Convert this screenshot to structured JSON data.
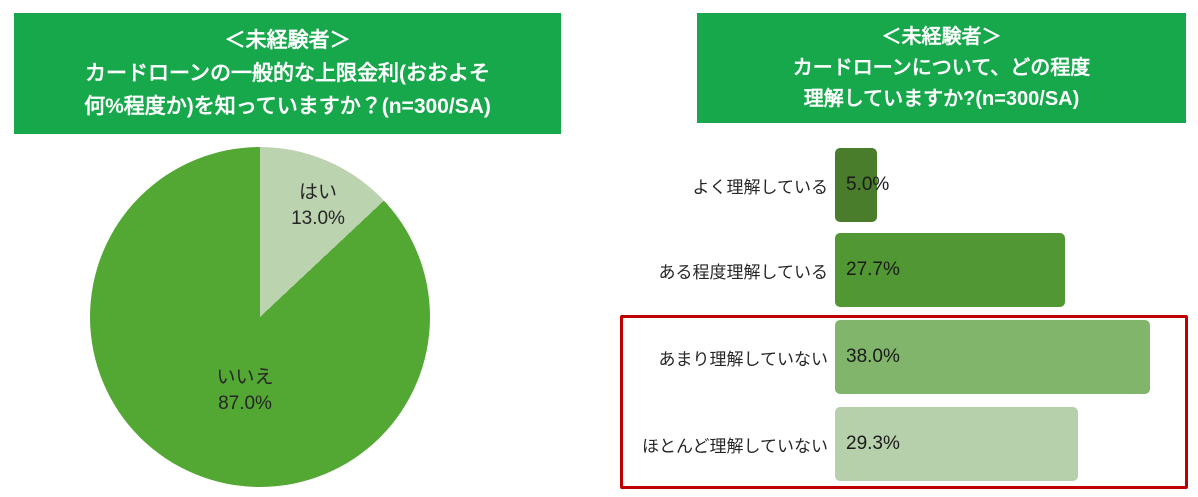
{
  "style": {
    "header_bg": "#17a84c",
    "header_text": "#ffffff",
    "label_color": "#262626",
    "background": "#ffffff"
  },
  "chart_data": [
    {
      "type": "pie",
      "title": "＜未経験者＞カードローンの一般的な上限金利(おおよそ何%程度か)を知っていますか？(n=300/SA)",
      "title_lines": [
        "＜未経験者＞",
        "カードローンの一般的な上限金利(おおよそ",
        "何%程度か)を知っていますか？(n=300/SA)"
      ],
      "n": 300,
      "labels": [
        "はい",
        "いいえ"
      ],
      "values": [
        13.0,
        87.0
      ],
      "value_labels": [
        "13.0%",
        "87.0%"
      ],
      "colors": [
        "#bcd3b0",
        "#53a733"
      ],
      "start_angle": "12-o-clock",
      "direction": "clockwise",
      "legend": "none (labels inside slices)"
    },
    {
      "type": "bar",
      "orientation": "horizontal",
      "title": "＜未経験者＞カードローンについて、どの程度理解していますか?(n=300/SA)",
      "title_lines": [
        "＜未経験者＞",
        "カードローンについて、どの程度",
        "理解していますか?(n=300/SA)"
      ],
      "n": 300,
      "categories": [
        "よく理解している",
        "ある程度理解している",
        "あまり理解していない",
        "ほとんど理解していない"
      ],
      "values": [
        5.0,
        27.7,
        38.0,
        29.3
      ],
      "value_labels": [
        "5.0%",
        "27.7%",
        "38.0%",
        "29.3%"
      ],
      "colors": [
        "#497c2b",
        "#519733",
        "#80b56b",
        "#b6d0ab"
      ],
      "xlim": [
        0,
        42
      ],
      "grid": false,
      "axis_labels": "none",
      "highlight": {
        "categories": [
          "あまり理解していない",
          "ほとんど理解していない"
        ],
        "border_color": "#c00000",
        "note": "red rectangle drawn around the bottom two bars"
      }
    }
  ]
}
